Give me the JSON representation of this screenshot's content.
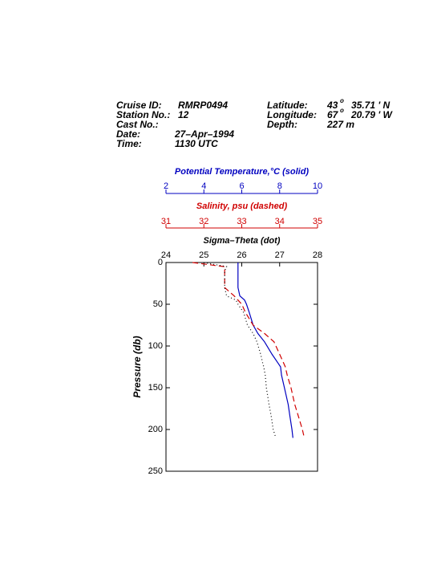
{
  "header": {
    "cruise_label": "Cruise ID:",
    "cruise": "RMRP0494",
    "station_label": "Station No.:",
    "station": "12",
    "cast_label": "Cast No.:",
    "date_label": "Date:",
    "date": "27–Apr–1994",
    "time_label": "Time:",
    "time": "1130 UTC",
    "lat_label": "Latitude:",
    "lat_deg": "43",
    "deg_mark": "o",
    "lat_min": "35.71 ' N",
    "lon_label": "Longitude:",
    "lon_deg": "67",
    "lon_min": "20.79 ' W",
    "depth_label": "Depth:",
    "depth": "227 m"
  },
  "chart_data": {
    "type": "line",
    "ylabel": "Pressure (db)",
    "ylim": [
      0,
      250
    ],
    "yticks": [
      0,
      50,
      100,
      150,
      200,
      250
    ],
    "pressure": [
      0,
      5,
      10,
      20,
      30,
      40,
      45,
      50,
      60,
      75,
      85,
      95,
      110,
      120,
      125,
      135,
      150,
      170,
      185,
      200,
      210
    ],
    "xaxes": [
      {
        "label": "Potential Temperature,°C (solid)",
        "color": "#0000c0",
        "xlim": [
          2,
          10
        ],
        "xticks": [
          2,
          4,
          6,
          8,
          10
        ]
      },
      {
        "label": "Salinity, psu  (dashed)",
        "color": "#d00000",
        "xlim": [
          31,
          35
        ],
        "xticks": [
          31,
          32,
          33,
          34,
          35
        ]
      },
      {
        "label": "Sigma–Theta (dot)",
        "color": "#000000",
        "xlim": [
          24,
          28
        ],
        "xticks": [
          24,
          25,
          26,
          27,
          28
        ]
      }
    ],
    "series": [
      {
        "xaxis": 0,
        "color": "#0000c0",
        "style": "solid",
        "values": [
          5.8,
          5.8,
          5.8,
          5.8,
          5.8,
          5.9,
          6.15,
          6.25,
          6.4,
          6.6,
          6.85,
          7.2,
          7.6,
          7.9,
          8.05,
          8.1,
          8.25,
          8.45,
          8.55,
          8.65,
          8.7
        ]
      },
      {
        "xaxis": 1,
        "color": "#d00000",
        "style": "dashed",
        "values": [
          31.7,
          32.55,
          32.55,
          32.55,
          32.55,
          32.8,
          32.9,
          33.0,
          33.1,
          33.3,
          33.6,
          33.85,
          34.0,
          34.1,
          34.15,
          34.2,
          34.3,
          34.4,
          34.5,
          34.6,
          34.65
        ]
      },
      {
        "xaxis": 2,
        "color": "#000000",
        "style": "dotted",
        "values": [
          25.0,
          25.6,
          25.55,
          25.55,
          25.55,
          25.6,
          25.85,
          25.9,
          26.05,
          26.15,
          26.3,
          26.4,
          26.5,
          26.55,
          26.58,
          26.62,
          26.65,
          26.72,
          26.78,
          26.83,
          26.9
        ]
      }
    ]
  }
}
